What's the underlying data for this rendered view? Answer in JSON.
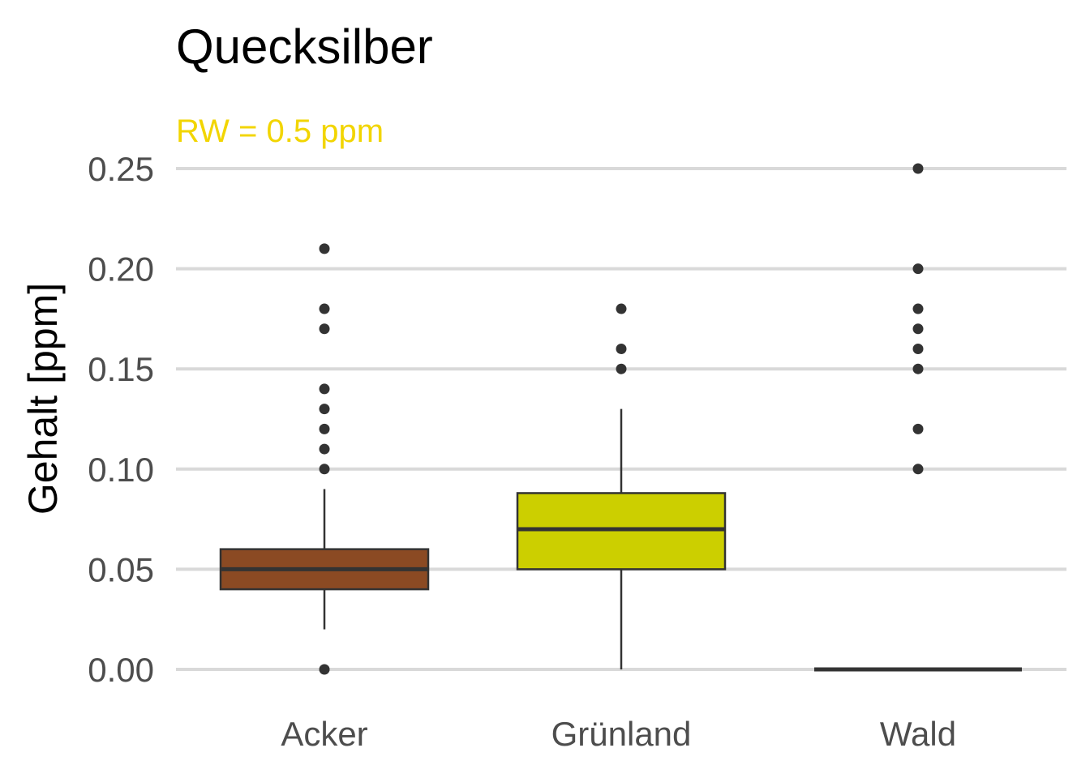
{
  "colors": {
    "subtitle": "#f2d500",
    "grid": "#d9d9d9",
    "tick_text": "#4d4d4d",
    "box_stroke": "#333333",
    "outlier": "#333333"
  },
  "chart_data": {
    "type": "boxplot",
    "title": "Quecksilber",
    "subtitle": "RW = 0.5 ppm",
    "xlabel": "",
    "ylabel": "Gehalt [ppm]",
    "ylim": [
      -0.015,
      0.26
    ],
    "yticks": [
      "0.00",
      "0.05",
      "0.10",
      "0.15",
      "0.20",
      "0.25"
    ],
    "ytick_values": [
      0.0,
      0.05,
      0.1,
      0.15,
      0.2,
      0.25
    ],
    "grid": "horizontal",
    "categories": [
      "Acker",
      "Grünland",
      "Wald"
    ],
    "boxes": [
      {
        "name": "Acker",
        "color": "#8b4a23",
        "q1": 0.04,
        "median": 0.05,
        "q3": 0.06,
        "whisker_low": 0.02,
        "whisker_high": 0.09,
        "outliers": [
          0.0,
          0.1,
          0.11,
          0.12,
          0.13,
          0.14,
          0.17,
          0.18,
          0.21
        ]
      },
      {
        "name": "Grünland",
        "color": "#cccf00",
        "q1": 0.05,
        "median": 0.07,
        "q3": 0.088,
        "whisker_low": 0.0,
        "whisker_high": 0.13,
        "outliers": [
          0.15,
          0.16,
          0.18
        ]
      },
      {
        "name": "Wald",
        "color": "#cccf00",
        "q1": 0.0,
        "median": 0.0,
        "q3": 0.0,
        "whisker_low": 0.0,
        "whisker_high": 0.0,
        "outliers": [
          0.1,
          0.12,
          0.15,
          0.16,
          0.17,
          0.18,
          0.2,
          0.25
        ]
      }
    ]
  }
}
